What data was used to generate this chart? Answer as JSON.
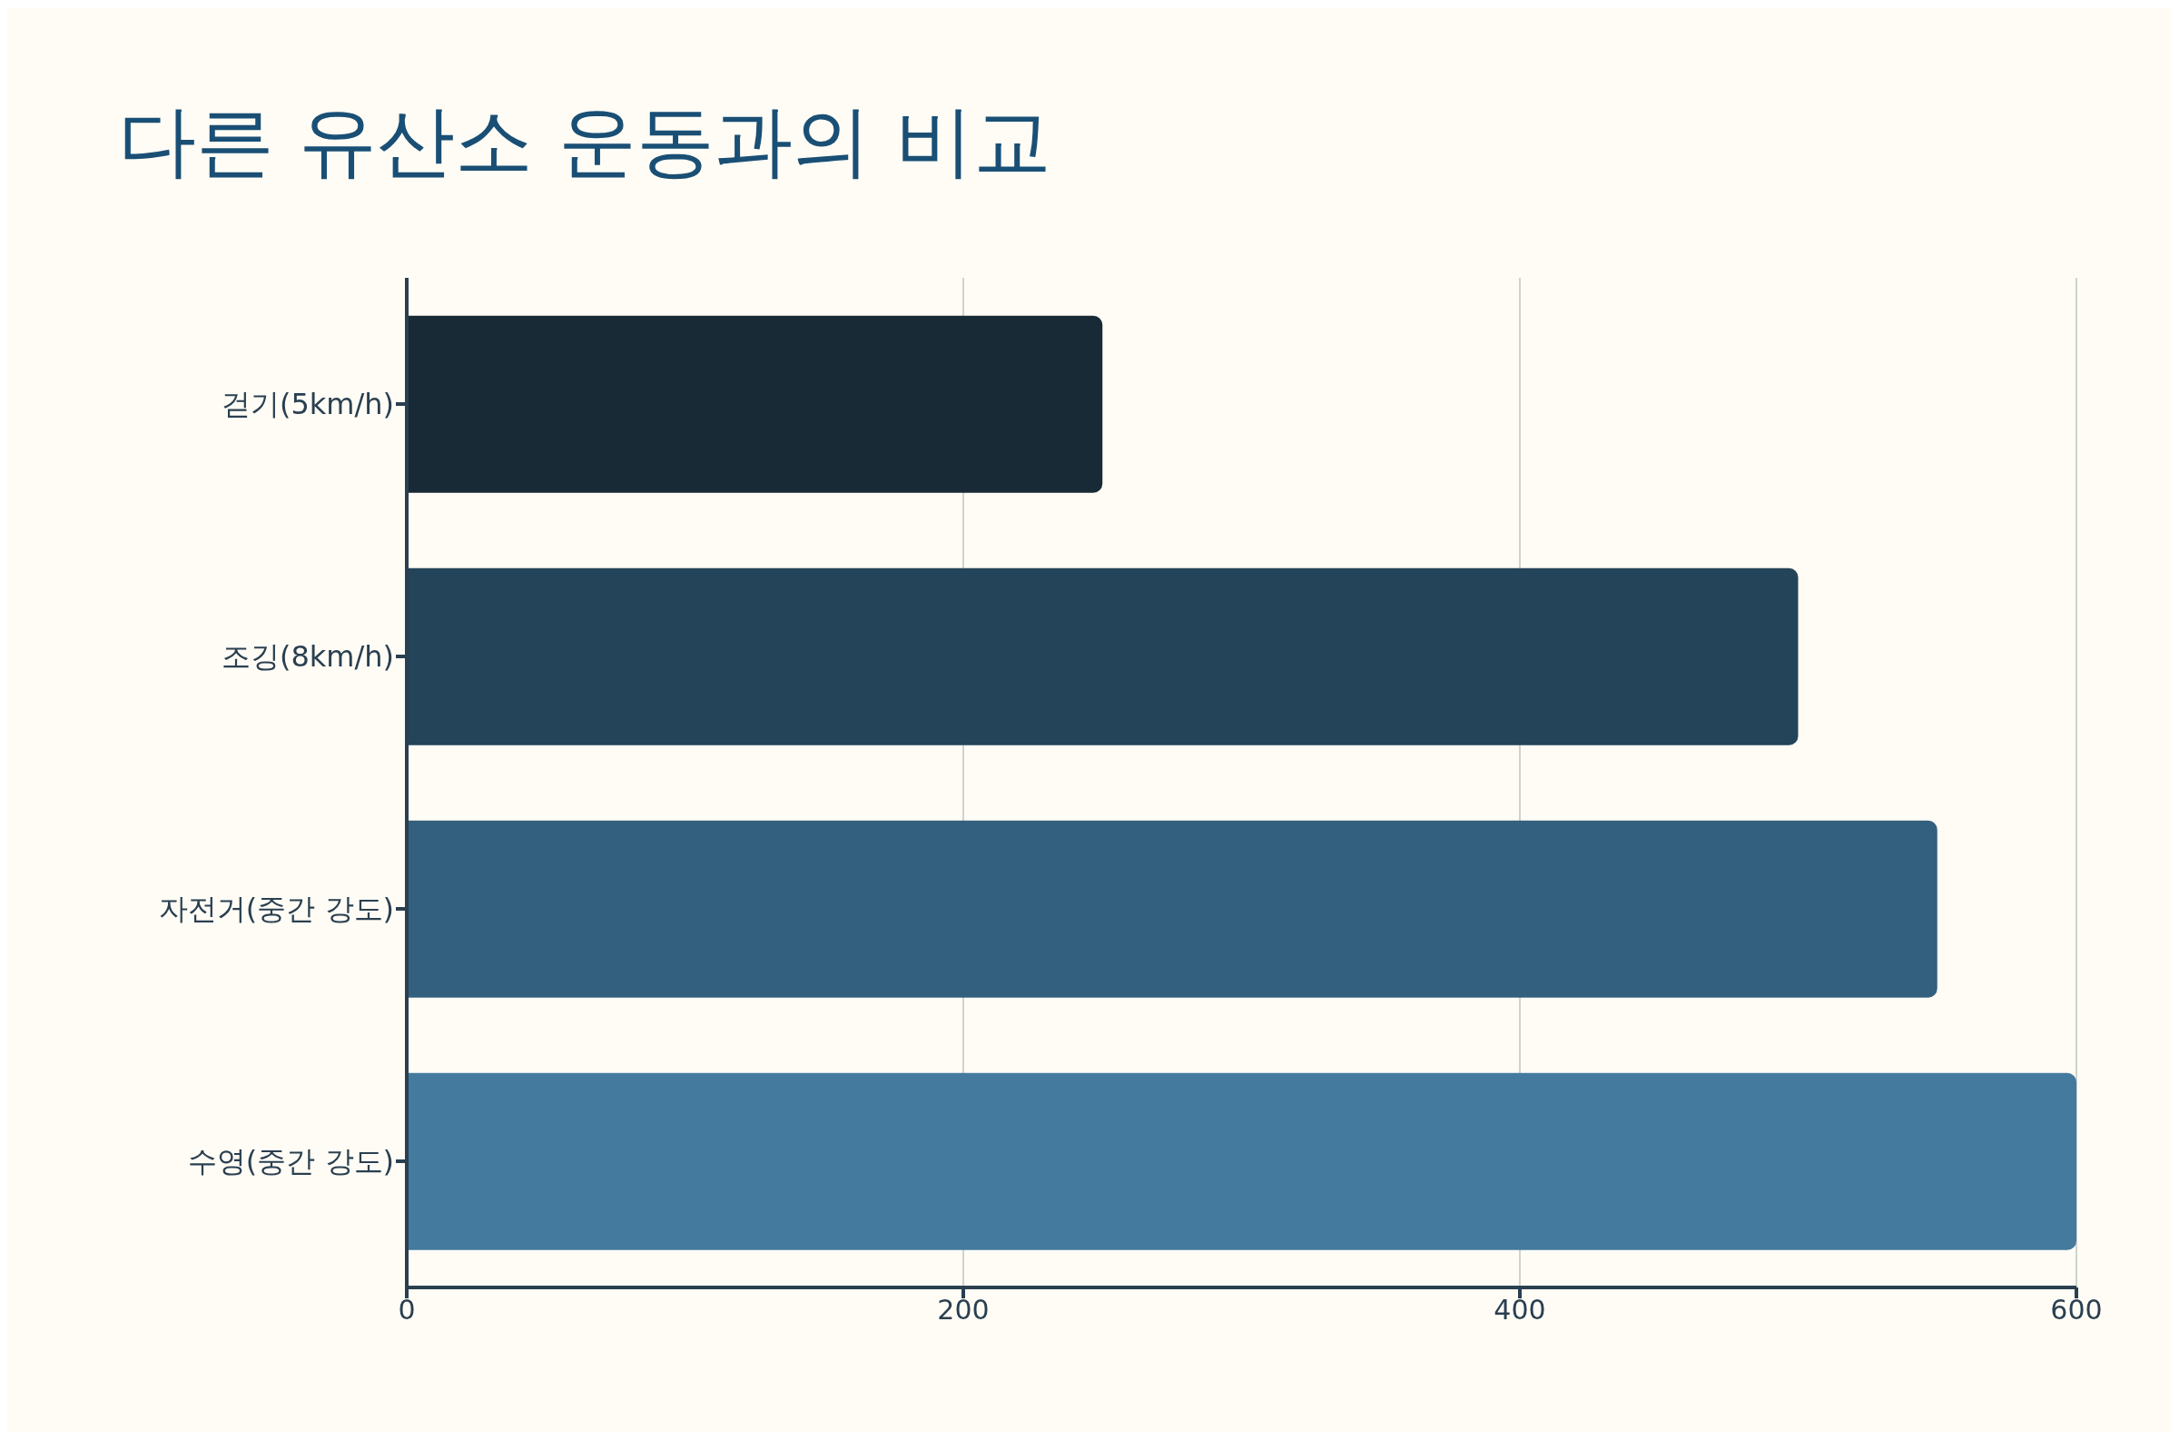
{
  "chart_data": {
    "type": "bar",
    "orientation": "horizontal",
    "title": "다른 유산소 운동과의 비교",
    "categories": [
      "걷기(5km/h)",
      "조깅(8km/h)",
      "자전거(중간 강도)",
      "수영(중간 강도)"
    ],
    "values": [
      250,
      500,
      550,
      600
    ],
    "colors": [
      "#182a35",
      "#244459",
      "#33607e",
      "#437a9e"
    ],
    "xlim": [
      0,
      600
    ],
    "xticks": [
      0,
      200,
      400,
      600
    ],
    "grid": "x",
    "legend": false
  }
}
